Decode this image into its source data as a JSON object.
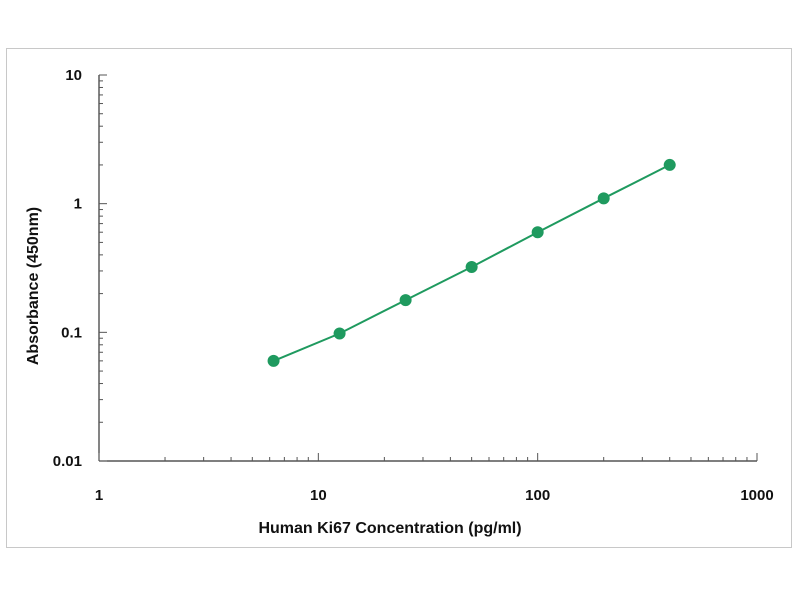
{
  "chart_data": {
    "type": "scatter",
    "title": "",
    "xlabel": "Human Ki67 Concentration (pg/ml)",
    "ylabel": "Absorbance (450nm)",
    "xscale": "log",
    "yscale": "log",
    "xlim": [
      1,
      1000
    ],
    "ylim": [
      0.01,
      10
    ],
    "x_ticks": [
      "1",
      "10",
      "100",
      "1000"
    ],
    "y_ticks": [
      "0.01",
      "0.1",
      "1",
      "10"
    ],
    "grid": false,
    "legend": "none",
    "series": [
      {
        "x": [
          6.25,
          12.5,
          25,
          50,
          100,
          200,
          400
        ],
        "y": [
          0.06,
          0.098,
          0.178,
          0.322,
          0.6,
          1.1,
          2.0
        ],
        "color": "#1f9a5f",
        "fit_line": true
      }
    ]
  }
}
